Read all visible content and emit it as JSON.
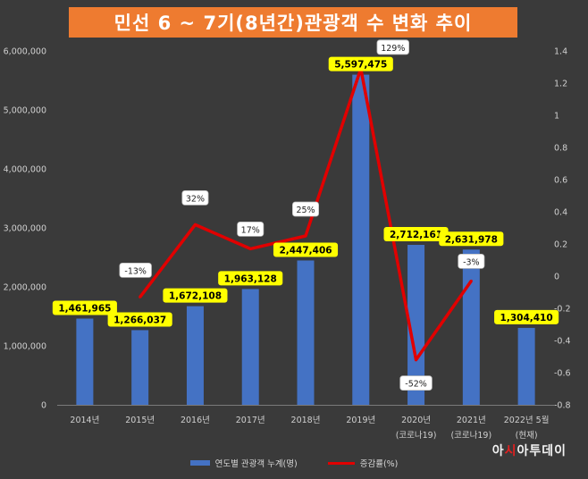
{
  "title": "민선 6 ~ 7기(8년간)관광객 수 변화 추이",
  "watermark": {
    "pre": "아",
    "accent": "시",
    "post": "아투데이"
  },
  "colors": {
    "bar": "#4472c4",
    "line": "#e10000",
    "value_label_bg": "#ffff00",
    "title_bg": "#ee7b30"
  },
  "chart_data": {
    "type": "bar",
    "categories": [
      [
        "2014년"
      ],
      [
        "2015년"
      ],
      [
        "2016년"
      ],
      [
        "2017년"
      ],
      [
        "2018년"
      ],
      [
        "2019년"
      ],
      [
        "2020년",
        "(코로나19)"
      ],
      [
        "2021년",
        "(코로나19)"
      ],
      [
        "2022년 5월",
        "(현재)"
      ]
    ],
    "series": [
      {
        "name": "연도별 관광객 누계(명)",
        "type": "bar",
        "axis": "left",
        "values": [
          1461965,
          1266037,
          1672108,
          1963128,
          2447406,
          5597475,
          2712161,
          2631978,
          1304410
        ],
        "labels": [
          "1,461,965",
          "1,266,037",
          "1,672,108",
          "1,963,128",
          "2,447,406",
          "5,597,475",
          "2,712,161",
          "2,631,978",
          "1,304,410"
        ]
      },
      {
        "name": "증감률(%)",
        "type": "line",
        "axis": "right",
        "values": [
          null,
          -0.13,
          0.32,
          0.17,
          0.25,
          1.29,
          -0.52,
          -0.03,
          null
        ],
        "labels": [
          "",
          "-13%",
          "32%",
          "17%",
          "25%",
          "129%",
          "-52%",
          "-3%",
          ""
        ]
      }
    ],
    "y_left": {
      "min": 0,
      "max": 6000000,
      "ticks": [
        "0",
        "1,000,000",
        "2,000,000",
        "3,000,000",
        "4,000,000",
        "5,000,000",
        "6,000,000"
      ]
    },
    "y_right": {
      "min": -0.8,
      "max": 1.4,
      "ticks": [
        "-0.8",
        "-0.6",
        "-0.4",
        "-0.2",
        "0",
        "0.2",
        "0.4",
        "0.6",
        "0.8",
        "1",
        "1.2",
        "1.4"
      ]
    },
    "grid": false,
    "legend_position": "bottom"
  }
}
